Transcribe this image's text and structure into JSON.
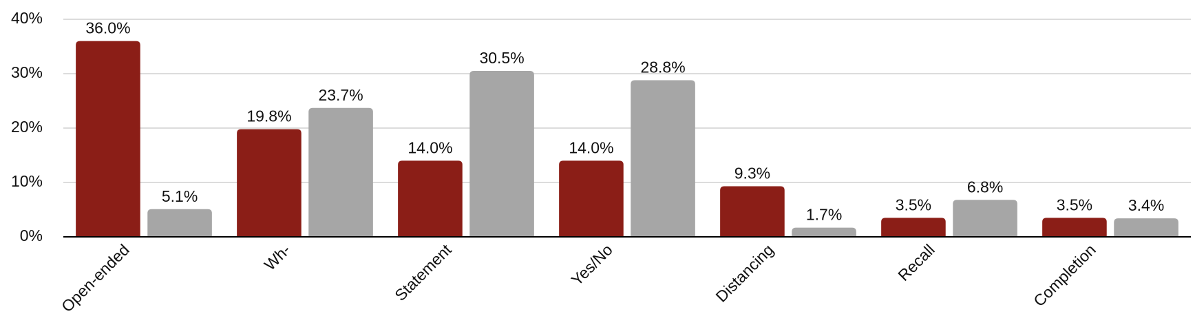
{
  "chart_data": {
    "type": "bar",
    "categories": [
      "Open-ended",
      "Wh-",
      "Statement",
      "Yes/No",
      "Distancing",
      "Recall",
      "Completion"
    ],
    "series": [
      {
        "color": "#8b1e17",
        "values": [
          36.0,
          19.8,
          14.0,
          14.0,
          9.3,
          3.5,
          3.5
        ],
        "value_labels": [
          "36.0%",
          "19.8%",
          "14.0%",
          "14.0%",
          "9.3%",
          "3.5%",
          "3.5%"
        ]
      },
      {
        "color": "#a6a6a6",
        "values": [
          5.1,
          23.7,
          30.5,
          28.8,
          1.7,
          6.8,
          3.4
        ],
        "value_labels": [
          "5.1%",
          "23.7%",
          "30.5%",
          "28.8%",
          "1.7%",
          "6.8%",
          "3.4%"
        ]
      }
    ],
    "ylim": [
      0,
      40
    ],
    "yticks": [
      {
        "value": 0,
        "label": "0%"
      },
      {
        "value": 10,
        "label": "10%"
      },
      {
        "value": 20,
        "label": "20%"
      },
      {
        "value": 30,
        "label": "30%"
      },
      {
        "value": 40,
        "label": "40%"
      }
    ],
    "grid": true
  }
}
